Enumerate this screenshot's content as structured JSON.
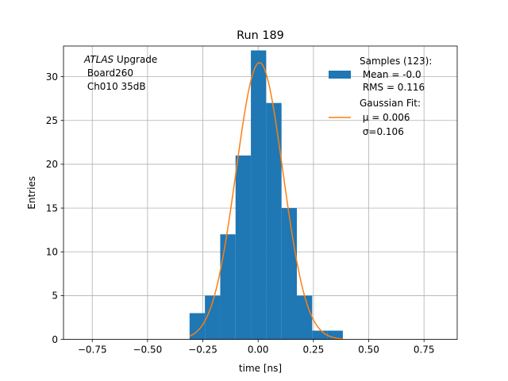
{
  "chart_data": {
    "type": "bar",
    "title": "Run 189",
    "xlabel": "time [ns]",
    "ylabel": "Entries",
    "xlim": [
      -0.88,
      0.9
    ],
    "ylim": [
      0,
      33.5
    ],
    "xticks": [
      -0.75,
      -0.5,
      -0.25,
      0.0,
      0.25,
      0.5,
      0.75
    ],
    "xtick_labels": [
      "−0.75",
      "−0.50",
      "−0.25",
      "0.00",
      "0.25",
      "0.50",
      "0.75"
    ],
    "yticks": [
      0,
      5,
      10,
      15,
      20,
      25,
      30
    ],
    "ytick_labels": [
      "0",
      "5",
      "10",
      "15",
      "20",
      "25",
      "30"
    ],
    "grid": true,
    "histogram": {
      "name": "Samples (123):",
      "color": "#1f77b4",
      "bin_edges": [
        -0.31,
        -0.2407,
        -0.1714,
        -0.1021,
        -0.0328,
        0.0365,
        0.1058,
        0.1751,
        0.2444,
        0.3137,
        0.383
      ],
      "counts": [
        3,
        5,
        12,
        21,
        33,
        27,
        15,
        5,
        1,
        1
      ]
    },
    "fit": {
      "name": "Gaussian Fit:",
      "color": "#ff7f0e",
      "amplitude": 31.6,
      "mu": 0.006,
      "sigma": 0.106,
      "x_range": [
        -0.31,
        0.383
      ]
    },
    "annotation": {
      "italic": "ATLAS",
      "rest": " Upgrade",
      "line2": " Board260",
      "line3": " Ch010 35dB"
    },
    "legend": {
      "placement": "top-right",
      "hist_lines": [
        "Samples (123):",
        " Mean = -0.0",
        " RMS = 0.116"
      ],
      "fit_lines": [
        "Gaussian Fit:",
        " μ = 0.006",
        " σ=0.106"
      ]
    }
  }
}
